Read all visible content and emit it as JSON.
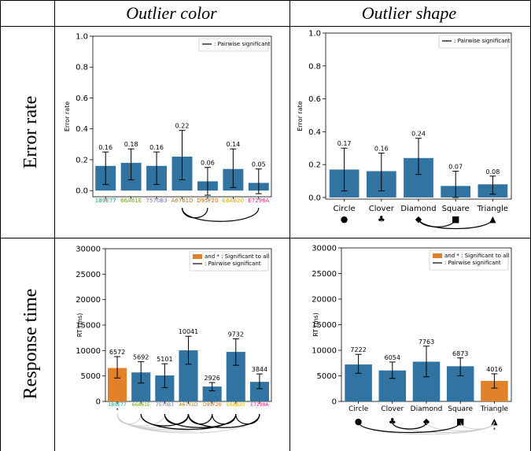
{
  "table": {
    "col_headers": [
      "Outlier color",
      "Outlier shape"
    ],
    "row_headers": [
      "Error rate",
      "Response time"
    ]
  },
  "chart_data": [
    {
      "id": "err-color",
      "type": "bar",
      "categories": [
        "1B9E77",
        "66A61E",
        "7570B3",
        "A6761D",
        "D95F20",
        "E6AB20",
        "E7298A"
      ],
      "category_colors": [
        "#1b9e77",
        "#66a61e",
        "#7570b3",
        "#a6761d",
        "#d95f02",
        "#e6ab02",
        "#e7298a"
      ],
      "values": [
        0.16,
        0.18,
        0.16,
        0.22,
        0.06,
        0.14,
        0.05
      ],
      "value_labels": [
        "0.16",
        "0.18",
        "0.16",
        "0.22",
        "0.06",
        "0.14",
        "0.05"
      ],
      "err_low": [
        0.04,
        0.07,
        0.04,
        0.07,
        -0.03,
        0.02,
        -0.02
      ],
      "err_high": [
        0.25,
        0.27,
        0.25,
        0.39,
        0.15,
        0.27,
        0.14
      ],
      "bar_colors": [
        "#3274a1",
        "#3274a1",
        "#3274a1",
        "#3274a1",
        "#3274a1",
        "#3274a1",
        "#3274a1"
      ],
      "ylabel": "Error rate",
      "ylim": [
        -0.04,
        1.0
      ],
      "yticks": [
        "0.0",
        "0.2",
        "0.4",
        "0.6",
        "0.8",
        "1.0"
      ],
      "ytick_values": [
        0,
        0.2,
        0.4,
        0.6,
        0.8,
        1.0
      ],
      "legend": [
        {
          "text": ": Pairwise significant",
          "kind": "line",
          "color": "#000000"
        }
      ],
      "arcs": [
        {
          "from": 3,
          "to": 4,
          "color": "#000000"
        },
        {
          "from": 3,
          "to": 6,
          "color": "#000000"
        }
      ],
      "markers": [],
      "grid": false,
      "legend_placement": "top-right"
    },
    {
      "id": "err-shape",
      "type": "bar",
      "categories": [
        "Circle",
        "Clover",
        "Diamond",
        "Square",
        "Triangle"
      ],
      "symbols": [
        "●",
        "♣",
        "◆",
        "■",
        "▲"
      ],
      "values": [
        0.17,
        0.16,
        0.24,
        0.07,
        0.08
      ],
      "value_labels": [
        "0.17",
        "0.16",
        "0.24",
        "0.07",
        "0.08"
      ],
      "err_low": [
        0.04,
        0.04,
        0.14,
        0.0,
        0.02
      ],
      "err_high": [
        0.3,
        0.27,
        0.36,
        0.16,
        0.13
      ],
      "bar_colors": [
        "#3274a1",
        "#3274a1",
        "#3274a1",
        "#3274a1",
        "#3274a1"
      ],
      "ylabel": "Error rate",
      "ylim": [
        -0.01,
        1.0
      ],
      "yticks": [
        "0.0",
        "0.2",
        "0.4",
        "0.6",
        "0.8",
        "1.0"
      ],
      "ytick_values": [
        0,
        0.2,
        0.4,
        0.6,
        0.8,
        1.0
      ],
      "legend": [
        {
          "text": ": Pairwise significant",
          "kind": "line",
          "color": "#000000"
        }
      ],
      "arcs": [
        {
          "from": 2,
          "to": 3,
          "color": "#000000"
        },
        {
          "from": 2,
          "to": 4,
          "color": "#000000"
        }
      ],
      "markers": [],
      "grid": false,
      "legend_placement": "top-right"
    },
    {
      "id": "rt-color",
      "type": "bar",
      "categories": [
        "1B9E77",
        "66A61E",
        "7570B3",
        "A6761D",
        "D95F20",
        "E6AB20",
        "E7298A"
      ],
      "category_colors": [
        "#1b9e77",
        "#66a61e",
        "#7570b3",
        "#a6761d",
        "#d95f02",
        "#e6ab02",
        "#e7298a"
      ],
      "values": [
        6572,
        5692,
        5101,
        10041,
        2926,
        9732,
        3844
      ],
      "value_labels": [
        "6572",
        "5692",
        "5101",
        "10041",
        "2926",
        "9732",
        "3844"
      ],
      "err_low": [
        4600,
        3600,
        2700,
        7300,
        2100,
        7100,
        2500
      ],
      "err_high": [
        8800,
        7800,
        7400,
        12800,
        3700,
        12300,
        5400
      ],
      "bar_colors": [
        "#e1812c",
        "#3274a1",
        "#3274a1",
        "#3274a1",
        "#3274a1",
        "#3274a1",
        "#3274a1"
      ],
      "ylabel": "RT (ms)",
      "ylim": [
        0,
        30000
      ],
      "yticks": [
        "0",
        "5000",
        "10000",
        "15000",
        "20000",
        "25000",
        "30000"
      ],
      "ytick_values": [
        0,
        5000,
        10000,
        15000,
        20000,
        25000,
        30000
      ],
      "legend": [
        {
          "text": "and * : Significant to all",
          "kind": "patch",
          "color": "#e1812c"
        },
        {
          "text": ": Pairwise significant",
          "kind": "line",
          "color": "#000000"
        }
      ],
      "arcs": [
        {
          "from": 1,
          "to": 3,
          "color": "#000000"
        },
        {
          "from": 1,
          "to": 5,
          "color": "#000000"
        },
        {
          "from": 2,
          "to": 3,
          "color": "#000000"
        },
        {
          "from": 2,
          "to": 5,
          "color": "#000000"
        },
        {
          "from": 3,
          "to": 4,
          "color": "#000000"
        },
        {
          "from": 3,
          "to": 6,
          "color": "#000000"
        },
        {
          "from": 4,
          "to": 5,
          "color": "#000000"
        },
        {
          "from": 5,
          "to": 6,
          "color": "#000000"
        },
        {
          "from": 0,
          "to": 1,
          "color": "#cccccc"
        },
        {
          "from": 0,
          "to": 2,
          "color": "#cccccc"
        },
        {
          "from": 0,
          "to": 3,
          "color": "#cccccc"
        },
        {
          "from": 0,
          "to": 4,
          "color": "#cccccc"
        },
        {
          "from": 0,
          "to": 5,
          "color": "#cccccc"
        },
        {
          "from": 0,
          "to": 6,
          "color": "#cccccc"
        }
      ],
      "markers": [
        {
          "index": 0,
          "text": "*"
        }
      ],
      "grid": false,
      "legend_placement": "top-right"
    },
    {
      "id": "rt-shape",
      "type": "bar",
      "categories": [
        "Circle",
        "Clover",
        "Diamond",
        "Square",
        "Triangle"
      ],
      "symbols": [
        "●",
        "♣",
        "◆",
        "■",
        "▲"
      ],
      "values": [
        7222,
        6054,
        7763,
        6873,
        4016
      ],
      "value_labels": [
        "7222",
        "6054",
        "7763",
        "6873",
        "4016"
      ],
      "err_low": [
        5500,
        4500,
        4800,
        5000,
        2600
      ],
      "err_high": [
        9200,
        7700,
        10800,
        8500,
        5400
      ],
      "bar_colors": [
        "#3274a1",
        "#3274a1",
        "#3274a1",
        "#3274a1",
        "#e1812c"
      ],
      "ylabel": "RT (ms)",
      "ylim": [
        0,
        30000
      ],
      "yticks": [
        "0",
        "5000",
        "10000",
        "15000",
        "20000",
        "25000",
        "30000"
      ],
      "ytick_values": [
        0,
        5000,
        10000,
        15000,
        20000,
        25000,
        30000
      ],
      "legend": [
        {
          "text": "and * : Significant to all",
          "kind": "patch",
          "color": "#e1812c"
        },
        {
          "text": ": Pairwise significant",
          "kind": "line",
          "color": "#000000"
        }
      ],
      "arcs": [
        {
          "from": 0,
          "to": 3,
          "color": "#000000"
        },
        {
          "from": 1,
          "to": 2,
          "color": "#000000"
        },
        {
          "from": 0,
          "to": 4,
          "color": "#cccccc"
        },
        {
          "from": 1,
          "to": 4,
          "color": "#cccccc"
        },
        {
          "from": 2,
          "to": 4,
          "color": "#cccccc"
        },
        {
          "from": 3,
          "to": 4,
          "color": "#cccccc"
        }
      ],
      "markers": [
        {
          "index": 4,
          "text": "*"
        }
      ],
      "grid": false,
      "legend_placement": "top-right"
    }
  ]
}
